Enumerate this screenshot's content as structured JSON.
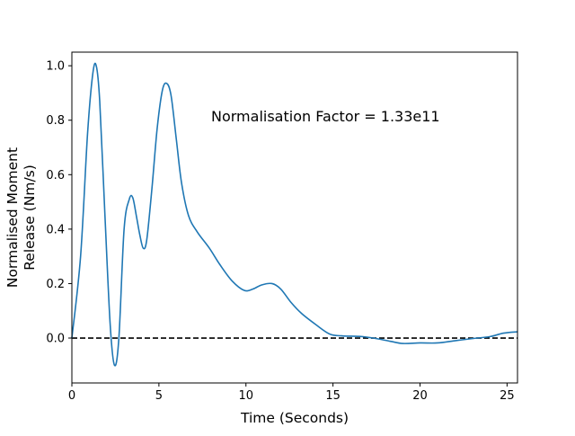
{
  "chart_data": {
    "type": "line",
    "title": "",
    "xlabel": "Time (Seconds)",
    "ylabel_lines": [
      "Normalised Moment",
      "Release (Nm/s)"
    ],
    "annotation": "Normalisation Factor = 1.33e11",
    "xlim": [
      0,
      25.6
    ],
    "ylim": [
      -0.165,
      1.05
    ],
    "x_ticks": [
      0,
      5,
      10,
      15,
      20,
      25
    ],
    "x_tick_labels": [
      "0",
      "5",
      "10",
      "15",
      "20",
      "25"
    ],
    "y_ticks": [
      0.0,
      0.2,
      0.4,
      0.6,
      0.8,
      1.0
    ],
    "y_tick_labels": [
      "0.0",
      "0.2",
      "0.4",
      "0.6",
      "0.8",
      "1.0"
    ],
    "grid": false,
    "colors": {
      "series": "#1f77b4",
      "reference_line": "#000000"
    },
    "reference_line": {
      "y": 0.0,
      "style": "dashed"
    },
    "series": [
      {
        "x": [
          0,
          0.5,
          0.9,
          1.2,
          1.4,
          1.6,
          1.9,
          2.2,
          2.45,
          2.7,
          3.0,
          3.3,
          3.5,
          3.7,
          3.9,
          4.1,
          4.3,
          4.6,
          4.9,
          5.2,
          5.45,
          5.7,
          6.0,
          6.3,
          6.7,
          7.2,
          7.9,
          8.5,
          9.2,
          9.9,
          10.4,
          10.9,
          11.5,
          12.0,
          12.6,
          13.2,
          14.0,
          14.8,
          15.5,
          16.5,
          17.3,
          18.3,
          19.0,
          20.0,
          21.0,
          22.0,
          23.0,
          24.0,
          24.8,
          25.6
        ],
        "y": [
          0.0,
          0.3,
          0.75,
          0.97,
          1.0,
          0.87,
          0.45,
          0.05,
          -0.1,
          0.0,
          0.4,
          0.51,
          0.515,
          0.45,
          0.38,
          0.33,
          0.36,
          0.55,
          0.77,
          0.91,
          0.935,
          0.89,
          0.73,
          0.57,
          0.45,
          0.39,
          0.33,
          0.27,
          0.21,
          0.175,
          0.18,
          0.195,
          0.2,
          0.18,
          0.13,
          0.09,
          0.05,
          0.015,
          0.008,
          0.006,
          0.0,
          -0.012,
          -0.02,
          -0.018,
          -0.018,
          -0.01,
          -0.002,
          0.005,
          0.018,
          0.023
        ]
      }
    ]
  }
}
